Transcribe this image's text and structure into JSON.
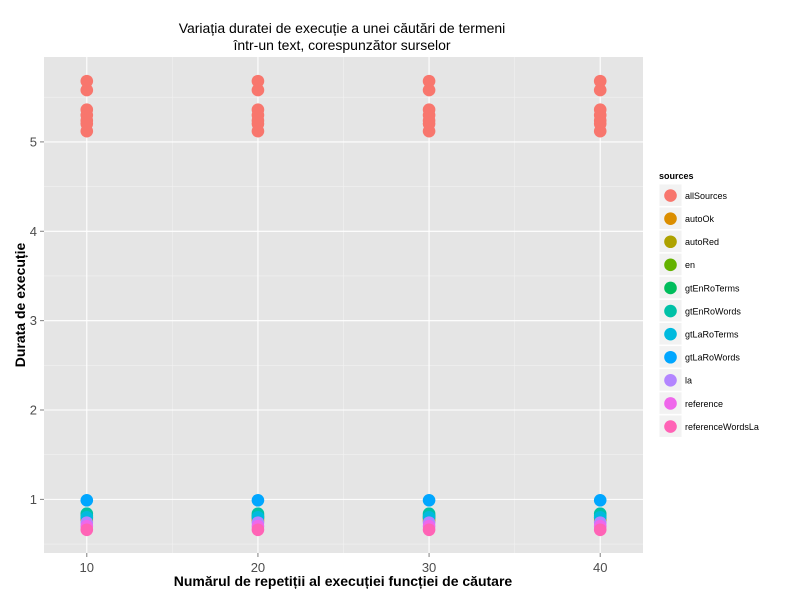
{
  "chart_data": {
    "type": "scatter",
    "title_lines": [
      "Variația duratei de execuție a unei căutări de termeni",
      "într-un text, corespunzător surselor"
    ],
    "xlabel": "Numărul de repetiții al execuției funcției de căutare",
    "ylabel": "Durata de execuție",
    "xlim": [
      7.5,
      42.5
    ],
    "ylim": [
      0.4,
      5.95
    ],
    "x_ticks": [
      10,
      20,
      30,
      40
    ],
    "y_ticks": [
      1,
      2,
      3,
      4,
      5
    ],
    "grid": true,
    "legend_position": "right",
    "legend_title": "sources",
    "x": [
      10,
      20,
      30,
      40
    ],
    "series": [
      {
        "name": "allSources",
        "color": "#F8766D",
        "values_per_x": [
          5.68,
          5.58,
          5.36,
          5.3,
          5.24,
          5.2,
          5.12
        ]
      },
      {
        "name": "autoOk",
        "color": "#DB8E00",
        "values_per_x": [
          0.76
        ]
      },
      {
        "name": "autoRed",
        "color": "#AEA200",
        "values_per_x": [
          0.78
        ]
      },
      {
        "name": "en",
        "color": "#64B200",
        "values_per_x": [
          0.8
        ]
      },
      {
        "name": "gtEnRoTerms",
        "color": "#00BD5C",
        "values_per_x": [
          0.82
        ]
      },
      {
        "name": "gtEnRoWords",
        "color": "#00C1A7",
        "values_per_x": [
          0.84
        ]
      },
      {
        "name": "gtLaRoTerms",
        "color": "#00BADE",
        "values_per_x": [
          0.8
        ]
      },
      {
        "name": "gtLaRoWords",
        "color": "#00A6FF",
        "values_per_x": [
          0.99
        ]
      },
      {
        "name": "la",
        "color": "#B385FF",
        "values_per_x": [
          0.74
        ]
      },
      {
        "name": "reference",
        "color": "#EF67EB",
        "values_per_x": [
          0.7
        ]
      },
      {
        "name": "referenceWordsLa",
        "color": "#FF63B6",
        "values_per_x": [
          0.66
        ]
      }
    ],
    "plot_background": "#E5E5E5",
    "grid_color": "#FFFFFF"
  }
}
